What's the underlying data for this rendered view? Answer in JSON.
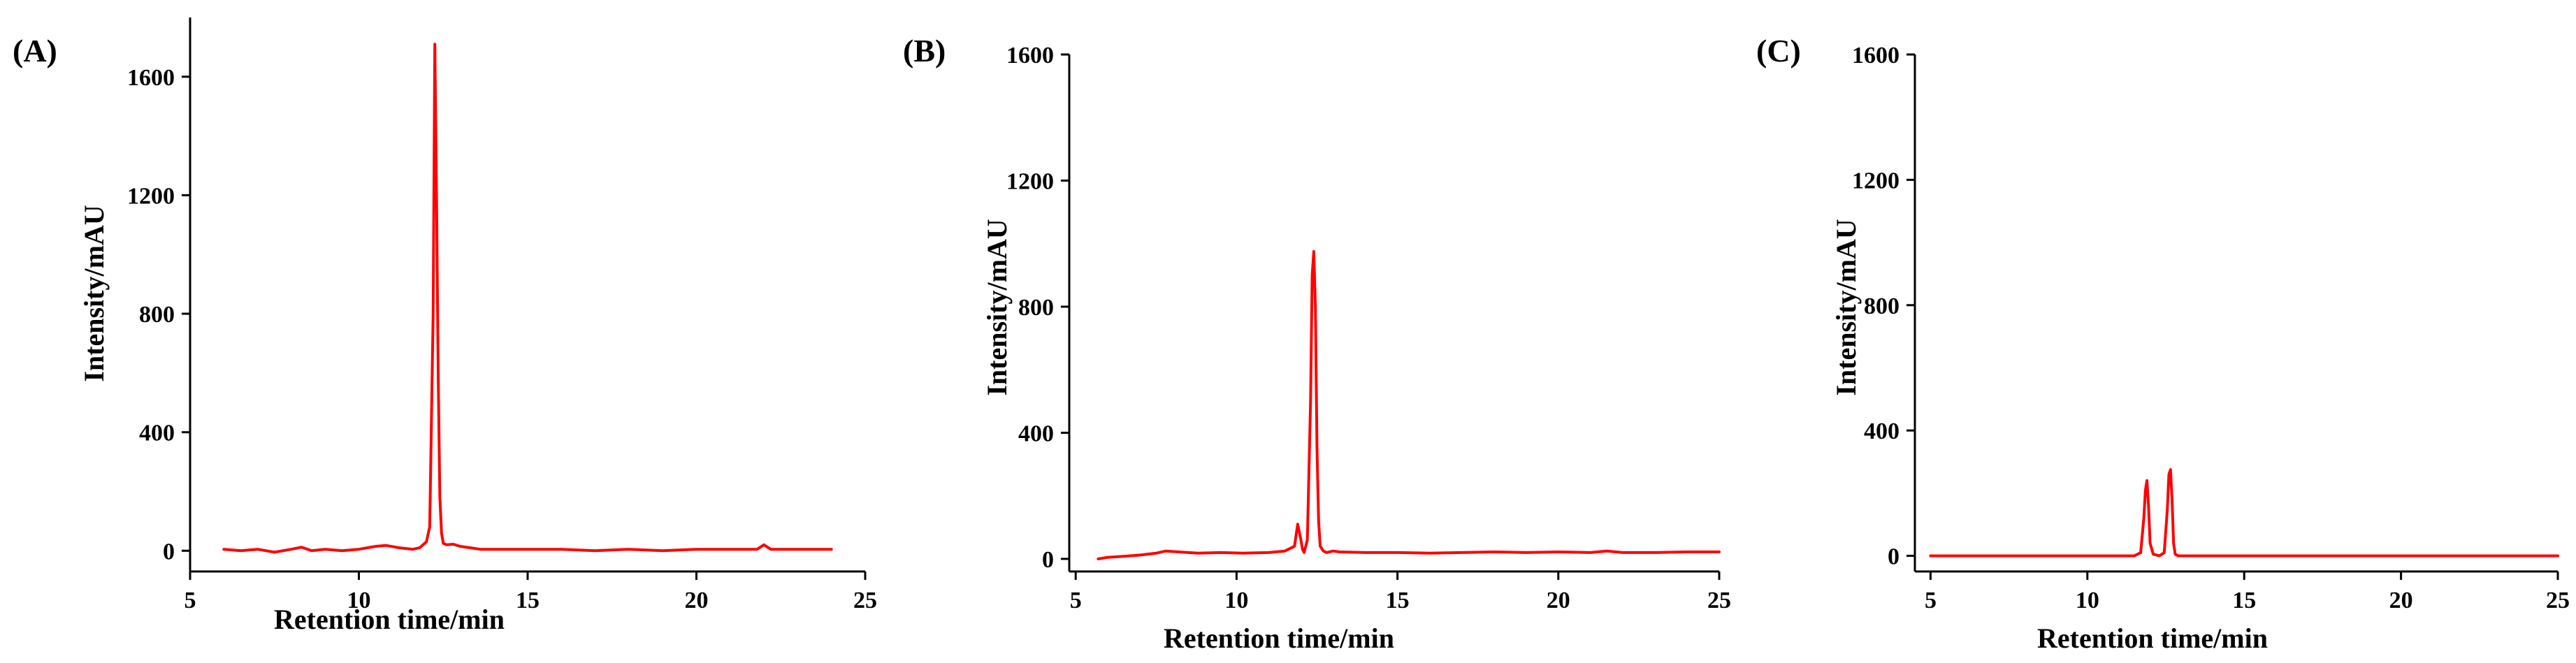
{
  "theme": {
    "line_color": "#ff0000",
    "axis_color": "#000000"
  },
  "chart_data": [
    {
      "type": "line",
      "panel_label": "(A)",
      "xlabel": "Retention time/min",
      "ylabel": "Intensity/mAU",
      "xlim": [
        5,
        25
      ],
      "ylim": [
        -70,
        1800
      ],
      "xticks": [
        5,
        10,
        15,
        20,
        25
      ],
      "yticks": [
        0,
        400,
        800,
        1200,
        1600
      ],
      "x": [
        6.0,
        6.5,
        7.0,
        7.5,
        8.0,
        8.3,
        8.6,
        9.0,
        9.5,
        10.0,
        10.5,
        10.8,
        11.2,
        11.6,
        11.8,
        12.0,
        12.1,
        12.2,
        12.25,
        12.3,
        12.35,
        12.4,
        12.45,
        12.5,
        12.6,
        12.8,
        13.0,
        13.3,
        13.6,
        14.0,
        15.0,
        16.0,
        17.0,
        18.0,
        19.0,
        20.0,
        21.0,
        21.8,
        22.0,
        22.2,
        23.0,
        24.0
      ],
      "series": [
        {
          "values": [
            5,
            0,
            5,
            -5,
            5,
            12,
            0,
            5,
            0,
            5,
            15,
            18,
            10,
            5,
            10,
            30,
            80,
            800,
            1710,
            1200,
            600,
            180,
            60,
            25,
            20,
            22,
            15,
            10,
            5,
            5,
            5,
            5,
            0,
            5,
            0,
            5,
            5,
            5,
            20,
            5,
            5,
            5
          ]
        }
      ]
    },
    {
      "type": "line",
      "panel_label": "(B)",
      "xlabel": "Retention time/min",
      "ylabel": "Intensity/mAU",
      "xlim": [
        4.8,
        25
      ],
      "ylim": [
        -40,
        1600
      ],
      "xticks": [
        5,
        10,
        15,
        20,
        25
      ],
      "yticks": [
        0,
        400,
        800,
        1200,
        1600
      ],
      "x": [
        5.7,
        6.0,
        6.5,
        7.0,
        7.5,
        7.8,
        8.2,
        8.8,
        9.5,
        10.2,
        11.0,
        11.5,
        11.8,
        11.9,
        12.0,
        12.05,
        12.1,
        12.2,
        12.3,
        12.35,
        12.4,
        12.45,
        12.5,
        12.55,
        12.6,
        12.7,
        12.8,
        13.0,
        13.2,
        14.0,
        15.0,
        16.0,
        17.0,
        18.0,
        19.0,
        20.0,
        21.0,
        21.5,
        22.0,
        23.0,
        24.0,
        25.0
      ],
      "series": [
        {
          "values": [
            0,
            5,
            8,
            12,
            18,
            25,
            22,
            18,
            20,
            18,
            20,
            25,
            40,
            110,
            60,
            30,
            20,
            60,
            500,
            900,
            975,
            800,
            350,
            120,
            40,
            25,
            20,
            25,
            22,
            20,
            20,
            18,
            20,
            22,
            20,
            22,
            20,
            25,
            20,
            20,
            22,
            22
          ]
        }
      ]
    },
    {
      "type": "line",
      "panel_label": "(C)",
      "xlabel": "Retention time/min",
      "ylabel": "Intensity/mAU",
      "xlim": [
        4.5,
        25
      ],
      "ylim": [
        -50,
        1600
      ],
      "xticks": [
        5,
        10,
        15,
        20,
        25
      ],
      "yticks": [
        0,
        400,
        800,
        1200,
        1600
      ],
      "x": [
        5.0,
        11.5,
        11.7,
        11.8,
        11.85,
        11.9,
        11.95,
        12.0,
        12.1,
        12.3,
        12.45,
        12.55,
        12.6,
        12.65,
        12.7,
        12.75,
        12.8,
        12.9,
        13.1,
        25.0
      ],
      "series": [
        {
          "values": [
            0,
            0,
            10,
            120,
            210,
            240,
            160,
            40,
            5,
            0,
            10,
            150,
            260,
            275,
            180,
            40,
            5,
            0,
            0,
            0
          ]
        }
      ]
    }
  ]
}
